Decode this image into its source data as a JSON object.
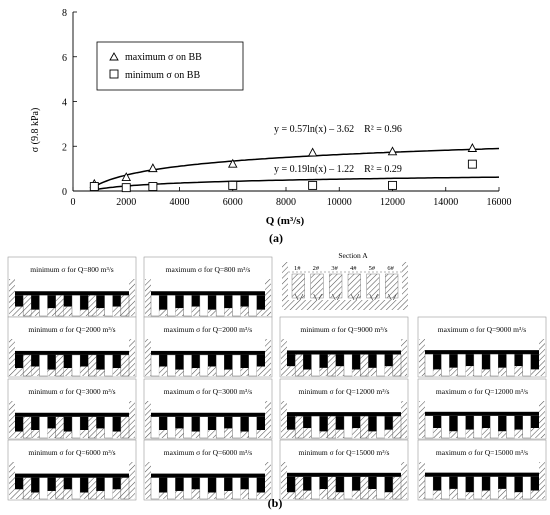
{
  "chart_data": [
    {
      "type": "scatter",
      "panel_label": "(a)",
      "xlabel": "Q (m³/s)",
      "ylabel": "σ (9.8 kPa)",
      "xlim": [
        0,
        16000
      ],
      "ylim": [
        0,
        8
      ],
      "x_ticks": [
        0,
        2000,
        4000,
        6000,
        8000,
        10000,
        12000,
        14000,
        16000
      ],
      "y_ticks": [
        0,
        2,
        4,
        6,
        8
      ],
      "grid": false,
      "legend_position": "top-left",
      "series": [
        {
          "name": "maximum σ on BB",
          "marker": "triangle",
          "x": [
            800,
            2000,
            3000,
            6000,
            9000,
            12000,
            15000
          ],
          "y": [
            0.3,
            0.6,
            1.0,
            1.2,
            1.7,
            1.75,
            1.9
          ],
          "trend": {
            "type": "log",
            "a": 0.57,
            "b": -3.62,
            "label": "y = 0.57ln(x) – 3.62    R² = 0.96"
          }
        },
        {
          "name": "minimum  σ on BB",
          "marker": "square",
          "x": [
            800,
            2000,
            3000,
            6000,
            9000,
            12000,
            15000
          ],
          "y": [
            0.2,
            0.15,
            0.2,
            0.25,
            0.25,
            0.25,
            1.2
          ],
          "trend": {
            "type": "log",
            "a": 0.19,
            "b": -1.22,
            "label": "y = 0.19ln(x) – 1.22    R² = 0.29"
          }
        }
      ]
    },
    {
      "type": "diagram_grid",
      "panel_label": "(b)",
      "section_title": "Section A",
      "section_labels": [
        "1#",
        "2#",
        "3#",
        "4#",
        "5#",
        "6#"
      ],
      "rows": [
        [
          {
            "label": "minimum σ for Q=800 m³/s",
            "level": 0.22
          },
          {
            "label": "maximum σ for Q=800 m³/s",
            "level": 0.22
          },
          null
        ],
        [
          {
            "label": "minimum σ for Q=2000 m³/s",
            "level": 0.26
          },
          {
            "label": "maximum σ for Q=2000 m³/s",
            "level": 0.26
          },
          {
            "label": "minimum σ for Q=9000 m³/s",
            "level": 0.32
          },
          {
            "label": "maximum σ for Q=9000 m³/s",
            "level": 0.36
          }
        ],
        [
          {
            "label": "minimum σ for Q=3000 m³/s",
            "level": 0.28
          },
          {
            "label": "maximum σ for Q=3000 m³/s",
            "level": 0.28
          },
          {
            "label": "minimum σ for Q=12000 m³/s",
            "level": 0.36
          },
          {
            "label": "maximum σ for Q=12000 m³/s",
            "level": 0.4
          }
        ],
        [
          {
            "label": "minimum σ for Q=6000 m³/s",
            "level": 0.3
          },
          {
            "label": "maximum σ for Q=6000 m³/s",
            "level": 0.3
          },
          {
            "label": "minimum σ for Q=15000 m³/s",
            "level": 0.4
          },
          {
            "label": "maximum σ for Q=15000 m³/s",
            "level": 0.42
          }
        ]
      ]
    }
  ]
}
